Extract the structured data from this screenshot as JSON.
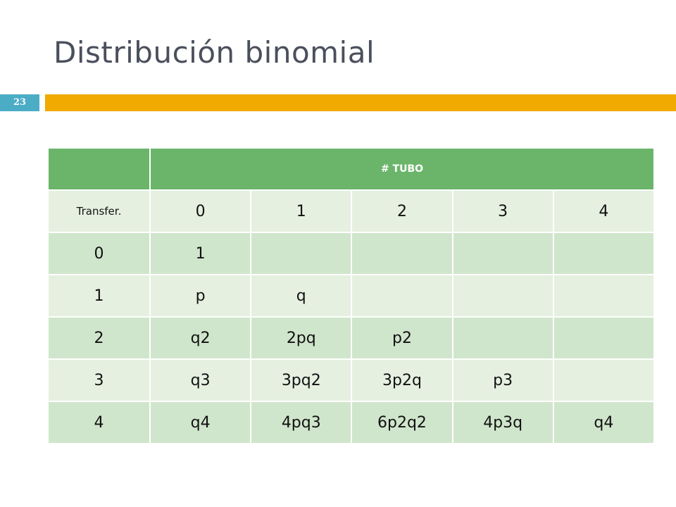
{
  "slide": {
    "title": "Distribución binomial",
    "number": "23"
  },
  "table": {
    "header_label": "# TUBO",
    "corner_label": "Transfer.",
    "columns": [
      "0",
      "1",
      "2",
      "3",
      "4"
    ],
    "rows": [
      {
        "label": "0",
        "cells": [
          "1",
          "",
          "",
          "",
          ""
        ]
      },
      {
        "label": "1",
        "cells": [
          "p",
          "q",
          "",
          "",
          ""
        ]
      },
      {
        "label": "2",
        "cells": [
          "q2",
          "2pq",
          "p2",
          "",
          ""
        ]
      },
      {
        "label": "3",
        "cells": [
          "q3",
          "3pq2",
          "3p2q",
          "p3",
          ""
        ]
      },
      {
        "label": "4",
        "cells": [
          "q4",
          "4pq3",
          "6p2q2",
          "4p3q",
          "q4"
        ]
      }
    ]
  },
  "colors": {
    "accent_bar": "#f0aa00",
    "slide_number_bg": "#4bacc6",
    "header_green": "#6bb56b",
    "row_light": "#e5f0e0",
    "row_dark": "#d0e6cc"
  }
}
